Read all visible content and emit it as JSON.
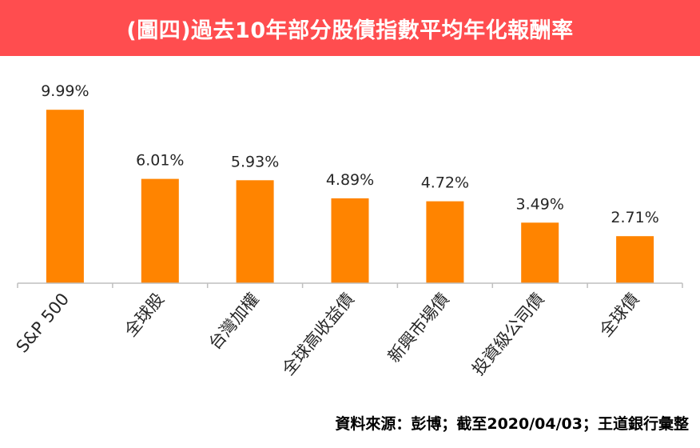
{
  "title": "(圖四)過去10年部分股債指數平均年化報酬率",
  "source": "資料來源：彭博；截至2020/04/03；王道銀行彙整",
  "colors": {
    "title_bg": "#ff4d4f",
    "bar": "#ff8400",
    "axis": "#bfbfbf",
    "text": "#262626"
  },
  "chart_data": {
    "type": "bar",
    "categories": [
      "S&P 500",
      "全球股",
      "台灣加權",
      "全球高收益債",
      "新興市場債",
      "投資級公司債",
      "全球債"
    ],
    "values": [
      9.99,
      6.01,
      5.93,
      4.89,
      4.72,
      3.49,
      2.71
    ],
    "value_labels": [
      "9.99%",
      "6.01%",
      "5.93%",
      "4.89%",
      "4.72%",
      "3.49%",
      "2.71%"
    ],
    "ylim": [
      0,
      10.0
    ],
    "grid": false,
    "legend": "none"
  }
}
